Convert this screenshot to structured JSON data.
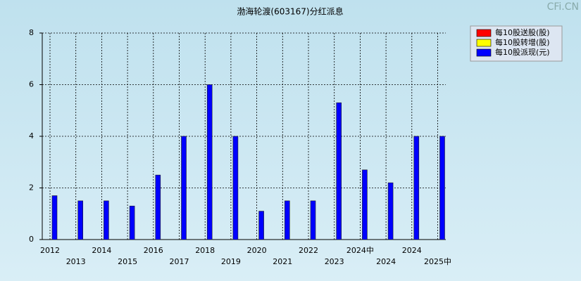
{
  "watermark": "CFi.CN",
  "chart_data": {
    "type": "bar",
    "title": "渤海轮渡(603167)分红派息",
    "categories": [
      "2012",
      "2013",
      "2014",
      "2015",
      "2016",
      "2017",
      "2018",
      "2019",
      "2020",
      "2021",
      "2022",
      "2023",
      "2024中",
      "2024",
      "2024",
      "2025中"
    ],
    "series": [
      {
        "name": "每10股送股(股)",
        "color": "#ff0000",
        "values": [
          0,
          0,
          0,
          0,
          0,
          0,
          0,
          0,
          0,
          0,
          0,
          0,
          0,
          0,
          0,
          0
        ]
      },
      {
        "name": "每10股转增(股)",
        "color": "#ffff00",
        "values": [
          0,
          0,
          0,
          0,
          0,
          0,
          0,
          0,
          0,
          0,
          0,
          0,
          0,
          0,
          0,
          0
        ]
      },
      {
        "name": "每10股派现(元)",
        "color": "#0000ff",
        "values": [
          1.7,
          1.5,
          1.5,
          1.3,
          2.5,
          4,
          6,
          4,
          1.1,
          1.5,
          1.5,
          5.3,
          2.7,
          2.2,
          4,
          4
        ]
      }
    ],
    "ylim": [
      0,
      8
    ],
    "yticks": [
      0,
      2,
      4,
      6,
      8
    ],
    "grid": true,
    "legend": "top-right"
  }
}
